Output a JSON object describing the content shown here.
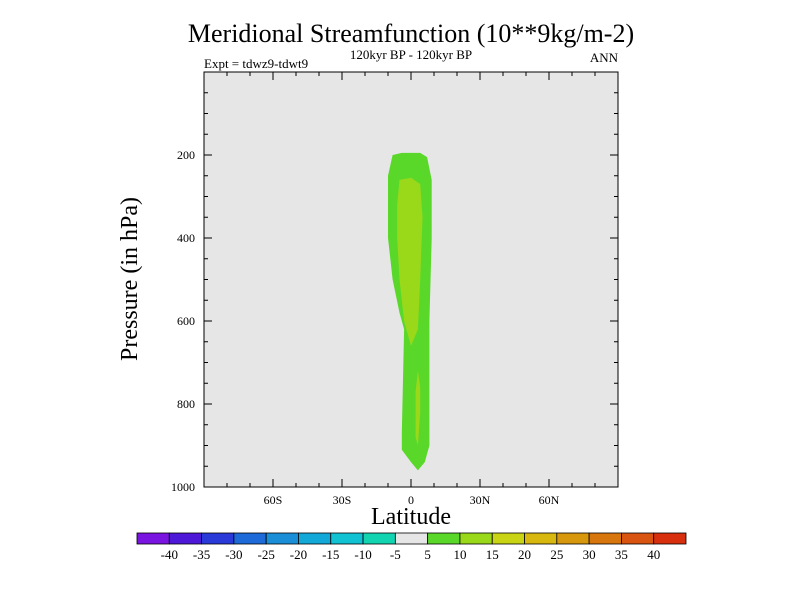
{
  "chart_data": {
    "type": "contour",
    "title": "Meridional Streamfunction (10**9kg/m-2)",
    "subtitle_left": "Expt = tdwz9-tdwt9",
    "subtitle_center": "120kyr BP - 120kyr BP",
    "subtitle_right": "ANN",
    "xlabel": "Latitude",
    "ylabel": "Pressure (in hPa)",
    "xlim": [
      -90,
      90
    ],
    "ylim": [
      1000,
      0
    ],
    "x_ticks": [
      {
        "value": -60,
        "label": "60S"
      },
      {
        "value": -30,
        "label": "30S"
      },
      {
        "value": 0,
        "label": "0"
      },
      {
        "value": 30,
        "label": "30N"
      },
      {
        "value": 60,
        "label": "60N"
      }
    ],
    "y_ticks": [
      {
        "value": 200,
        "label": "200"
      },
      {
        "value": 400,
        "label": "400"
      },
      {
        "value": 600,
        "label": "600"
      },
      {
        "value": 800,
        "label": "800"
      },
      {
        "value": 1000,
        "label": "1000"
      }
    ],
    "background_color": "#e6e6e6",
    "levels": [
      "-40",
      "-35",
      "-30",
      "-25",
      "-20",
      "-15",
      "-10",
      "-5",
      "5",
      "10",
      "15",
      "20",
      "25",
      "30",
      "35",
      "40"
    ],
    "colors": [
      "#7a14e0",
      "#4e18d8",
      "#2a3ad8",
      "#1d6ad8",
      "#1a8fd8",
      "#12a8d8",
      "#10c2d2",
      "#12d4b0",
      "#e6e6e6",
      "#5ad82a",
      "#9ad81a",
      "#c8d414",
      "#d8b80e",
      "#d8980e",
      "#d8760e",
      "#d85410",
      "#d8300e"
    ],
    "contour_regions": [
      {
        "name": "contour-5-10",
        "level_range": [
          5,
          10
        ],
        "color": "#5ad82a",
        "outline": [
          [
            -8,
            200
          ],
          [
            -4,
            195
          ],
          [
            4,
            195
          ],
          [
            7,
            205
          ],
          [
            9,
            260
          ],
          [
            9,
            400
          ],
          [
            8,
            600
          ],
          [
            8,
            900
          ],
          [
            6,
            940
          ],
          [
            3,
            960
          ],
          [
            0,
            940
          ],
          [
            -4,
            910
          ],
          [
            -4,
            870
          ],
          [
            -3,
            620
          ],
          [
            -5,
            580
          ],
          [
            -8,
            500
          ],
          [
            -10,
            400
          ],
          [
            -10,
            250
          ],
          [
            -8,
            200
          ]
        ]
      },
      {
        "name": "contour-10-15-upper",
        "level_range": [
          10,
          15
        ],
        "color": "#9ad81a",
        "outline": [
          [
            -5,
            260
          ],
          [
            0,
            255
          ],
          [
            4,
            270
          ],
          [
            5,
            350
          ],
          [
            4,
            500
          ],
          [
            3,
            620
          ],
          [
            0,
            660
          ],
          [
            -3,
            600
          ],
          [
            -5,
            500
          ],
          [
            -6,
            400
          ],
          [
            -6,
            320
          ],
          [
            -5,
            260
          ]
        ]
      },
      {
        "name": "contour-10-15-lower",
        "level_range": [
          10,
          15
        ],
        "color": "#9ad81a",
        "outline": [
          [
            3,
            720
          ],
          [
            4,
            760
          ],
          [
            4,
            820
          ],
          [
            3,
            900
          ],
          [
            2,
            880
          ],
          [
            2,
            770
          ],
          [
            3,
            720
          ]
        ]
      }
    ]
  }
}
